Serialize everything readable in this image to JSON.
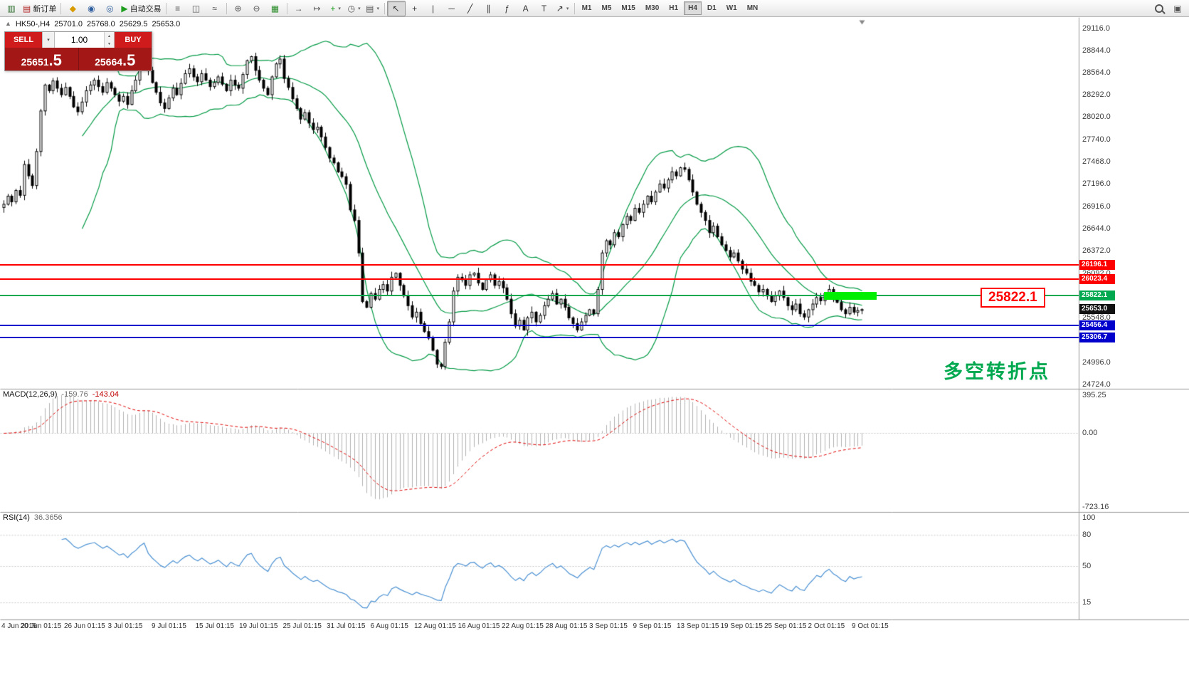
{
  "toolbar": {
    "items": [
      {
        "name": "new-chart-icon",
        "glyph": "▥",
        "color": "#2f6f2f"
      },
      {
        "name": "new-order-button",
        "glyph": "▤",
        "color": "#b22222",
        "label": "新订单"
      },
      {
        "sep": true
      },
      {
        "name": "alerts-icon",
        "glyph": "◆",
        "color": "#d79b00"
      },
      {
        "name": "profile-icon",
        "glyph": "◉",
        "color": "#2e5e9e"
      },
      {
        "name": "community-icon",
        "glyph": "◎",
        "color": "#2e5e9e"
      },
      {
        "name": "autotrading-button",
        "glyph": "▶",
        "color": "#1e9e1e",
        "label": "自动交易"
      },
      {
        "sep": true
      },
      {
        "name": "bar-chart-icon",
        "glyph": "≡",
        "color": "#555555"
      },
      {
        "name": "candlestick-chart-icon",
        "glyph": "◫",
        "color": "#555555"
      },
      {
        "name": "line-chart-icon",
        "glyph": "≈",
        "color": "#555555"
      },
      {
        "sep": true
      },
      {
        "name": "zoom-in-icon",
        "glyph": "⊕",
        "color": "#555555"
      },
      {
        "name": "zoom-out-icon",
        "glyph": "⊖",
        "color": "#555555"
      },
      {
        "name": "tile-windows-icon",
        "glyph": "▦",
        "color": "#2f8f2f"
      },
      {
        "sep": true
      },
      {
        "name": "auto-scroll-icon",
        "glyph": "→",
        "color": "#555555"
      },
      {
        "name": "chart-shift-icon",
        "glyph": "↦",
        "color": "#555555"
      },
      {
        "name": "indicators-button",
        "glyph": "+",
        "color": "#1e9e1e",
        "dropdown": true
      },
      {
        "name": "periods-button",
        "glyph": "◷",
        "color": "#555555",
        "dropdown": true
      },
      {
        "name": "templates-button",
        "glyph": "▤",
        "color": "#555555",
        "dropdown": true
      },
      {
        "sep": true
      },
      {
        "name": "cursor-icon",
        "glyph": "↖",
        "color": "#333333",
        "active": true
      },
      {
        "name": "crosshair-icon",
        "glyph": "+",
        "color": "#333333"
      },
      {
        "name": "vertical-line-icon",
        "glyph": "|",
        "color": "#333333"
      },
      {
        "name": "horizontal-line-icon",
        "glyph": "─",
        "color": "#333333"
      },
      {
        "name": "trendline-icon",
        "glyph": "╱",
        "color": "#333333"
      },
      {
        "name": "channel-icon",
        "glyph": "∥",
        "color": "#333333"
      },
      {
        "name": "fibonacci-icon",
        "glyph": "ƒ",
        "color": "#333333"
      },
      {
        "name": "text-icon",
        "glyph": "A",
        "color": "#333333"
      },
      {
        "name": "text-label-icon",
        "glyph": "T",
        "color": "#333333"
      },
      {
        "name": "arrows-button",
        "glyph": "↗",
        "color": "#333333",
        "dropdown": true
      },
      {
        "sep": true
      }
    ],
    "right_items": [
      {
        "name": "search-icon",
        "css": "mag"
      },
      {
        "name": "dock-windows-icon",
        "glyph": "▣",
        "color": "#555555"
      }
    ]
  },
  "timeframes": {
    "options": [
      "M1",
      "M5",
      "M15",
      "M30",
      "H1",
      "H4",
      "D1",
      "W1",
      "MN"
    ],
    "active": "H4"
  },
  "chart_header": {
    "marker": "▲",
    "symbol_period": "HK50-,H4",
    "open": "25701.0",
    "high": "25768.0",
    "low": "25629.5",
    "close": "25653.0"
  },
  "trade_panel": {
    "sell_label": "SELL",
    "buy_label": "BUY",
    "volume": "1.00",
    "sell_price": {
      "main": "25651",
      "big": ".5"
    },
    "buy_price": {
      "main": "25664",
      "big": ".5"
    },
    "colors": {
      "button": "#cf1b1b",
      "panel": "#a31717"
    }
  },
  "icons": {
    "chevron_down": "▾",
    "spinner_up": "▲",
    "spinner_down": "▼"
  },
  "price_axis": {
    "labels": [
      "29116.0",
      "28844.0",
      "28564.0",
      "28292.0",
      "28020.0",
      "27740.0",
      "27468.0",
      "27196.0",
      "26916.0",
      "26644.0",
      "26372.0",
      "26092.0",
      "25548.0",
      "24996.0",
      "24724.0"
    ]
  },
  "hlines": [
    {
      "price": 26196.1,
      "label": "26196.1",
      "color": "#ff0000"
    },
    {
      "price": 26023.4,
      "label": "26023.4",
      "color": "#ff0000"
    },
    {
      "price": 25822.1,
      "label": "25822.1",
      "color": "#00a84f"
    },
    {
      "price": 25456.4,
      "label": "25456.4",
      "color": "#0000cd"
    },
    {
      "price": 25306.7,
      "label": "25306.7",
      "color": "#0000cd"
    }
  ],
  "current_price": {
    "label": "25653.0",
    "value": 25653.0,
    "bg": "#111111"
  },
  "highlight": {
    "price": 25822.1,
    "color": "#00ef00"
  },
  "callout": {
    "text": "25822.1",
    "color": "#ff0000"
  },
  "annotation": {
    "text": "多空转折点",
    "color": "#00a84f"
  },
  "macd_pane": {
    "title": "MACD(12,26,9)",
    "value1": "-159.76",
    "value2": "-143.04",
    "scale": [
      "395.25",
      "0.00",
      "-723.16"
    ]
  },
  "rsi_pane": {
    "title": "RSI(14)",
    "value": "36.3656",
    "scale": [
      "100",
      "80",
      "50",
      "15"
    ],
    "levels": [
      80,
      50,
      15
    ]
  },
  "time_axis": {
    "labels": [
      "4 Jun 2019",
      "20 Jun 01:15",
      "26 Jun 01:15",
      "3 Jul 01:15",
      "9 Jul 01:15",
      "15 Jul 01:15",
      "19 Jul 01:15",
      "25 Jul 01:15",
      "31 Jul 01:15",
      "6 Aug 01:15",
      "12 Aug 01:15",
      "16 Aug 01:15",
      "22 Aug 01:15",
      "28 Aug 01:15",
      "3 Sep 01:15",
      "9 Sep 01:15",
      "13 Sep 01:15",
      "19 Sep 01:15",
      "25 Sep 01:15",
      "2 Oct 01:15",
      "9 Oct 01:15"
    ]
  },
  "colors": {
    "bollinger": "#009944",
    "candle_up": "#ffffff",
    "candle_down": "#000000",
    "candle_outline": "#000000",
    "macd_hist": "#b0b0b0",
    "macd_signal": "#e00000",
    "rsi": "#4a90d2",
    "separator": "#9a9a9a"
  },
  "chart_data": {
    "type": "candlestick",
    "symbol": "HK50-",
    "timeframe": "H4",
    "title": "HK50-,H4",
    "last_ohlc": {
      "open": 25701.0,
      "high": 25768.0,
      "low": 25629.5,
      "close": 25653.0
    },
    "price_axis_top": 29200,
    "price_axis_bottom": 24680,
    "hlines": [
      26196.1,
      26023.4,
      25822.1,
      25456.4,
      25306.7
    ],
    "indicators": {
      "bollinger_period": 20,
      "bollinger_deviation": 2,
      "macd_params": [
        12,
        26,
        9
      ],
      "macd_current": [
        -159.76,
        -143.04
      ],
      "macd_scale": [
        395.25,
        0.0,
        -723.16
      ],
      "rsi_period": 14,
      "rsi_current": 36.3656
    },
    "closes": [
      26950,
      27050,
      26980,
      27120,
      27060,
      27440,
      27300,
      27180,
      27600,
      28100,
      28420,
      28350,
      28470,
      28380,
      28300,
      28390,
      28280,
      28150,
      28090,
      28210,
      28350,
      28420,
      28480,
      28400,
      28330,
      28450,
      28380,
      28300,
      28220,
      28280,
      28180,
      28350,
      28480,
      28700,
      28870,
      28600,
      28450,
      28330,
      28200,
      28130,
      28260,
      28380,
      28300,
      28440,
      28560,
      28620,
      28520,
      28460,
      28560,
      28480,
      28400,
      28450,
      28520,
      28430,
      28350,
      28480,
      28420,
      28380,
      28550,
      28720,
      28770,
      28600,
      28480,
      28380,
      28300,
      28520,
      28680,
      28740,
      28500,
      28390,
      28250,
      28130,
      28000,
      28080,
      27950,
      27870,
      27900,
      27780,
      27650,
      27520,
      27460,
      27350,
      27290,
      27195,
      26880,
      26750,
      26350,
      25750,
      25680,
      25850,
      25780,
      25900,
      25960,
      25880,
      26050,
      26100,
      25950,
      25820,
      25700,
      25560,
      25620,
      25480,
      25380,
      25300,
      25150,
      24980,
      24950,
      25250,
      25500,
      25880,
      26050,
      26020,
      25950,
      26080,
      26100,
      25980,
      25900,
      26020,
      26080,
      25950,
      26000,
      25920,
      25780,
      25600,
      25450,
      25520,
      25400,
      25550,
      25620,
      25500,
      25580,
      25700,
      25780,
      25850,
      25720,
      25780,
      25680,
      25550,
      25480,
      25400,
      25500,
      25580,
      25650,
      25600,
      25900,
      26350,
      26500,
      26450,
      26600,
      26550,
      26700,
      26800,
      26750,
      26900,
      26850,
      26950,
      27050,
      26980,
      27100,
      27200,
      27150,
      27250,
      27350,
      27300,
      27400,
      27380,
      27250,
      27100,
      26950,
      26850,
      26750,
      26600,
      26680,
      26550,
      26450,
      26380,
      26300,
      26350,
      26250,
      26150,
      26100,
      26000,
      25950,
      25870,
      25900,
      25820,
      25750,
      25820,
      25880,
      25800,
      25700,
      25650,
      25720,
      25600,
      25560,
      25650,
      25720,
      25800,
      25760,
      25850,
      25900,
      25800,
      25740,
      25650,
      25600,
      25680,
      25620,
      25640,
      25653
    ]
  }
}
